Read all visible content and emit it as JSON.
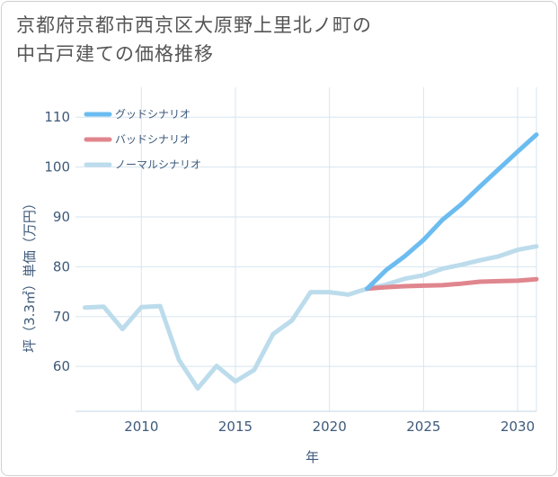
{
  "title_line1": "京都府京都市西京区大原野上里北ノ町の",
  "title_line2": "中古戸建ての価格推移",
  "chart_data": {
    "type": "line",
    "title": "京都府京都市西京区大原野上里北ノ町の中古戸建ての価格推移",
    "xlabel": "年",
    "ylabel": "坪（3.3㎡）単価（万円）",
    "xlim": [
      2006.5,
      2031
    ],
    "ylim": [
      51,
      116
    ],
    "xticks": [
      2010,
      2015,
      2020,
      2025,
      2030
    ],
    "yticks": [
      60,
      70,
      80,
      90,
      100,
      110
    ],
    "grid": true,
    "legend_position": "top-left",
    "series": [
      {
        "name": "グッドシナリオ",
        "color": "#6bbcf0",
        "x": [
          2022,
          2023,
          2024,
          2025,
          2026,
          2027,
          2028,
          2029,
          2030,
          2031
        ],
        "y": [
          75.6,
          79.3,
          82.1,
          85.4,
          89.4,
          92.5,
          96.1,
          99.6,
          103.1,
          106.5
        ]
      },
      {
        "name": "バッドシナリオ",
        "color": "#e0868e",
        "x": [
          2022,
          2023,
          2024,
          2025,
          2026,
          2027,
          2028,
          2029,
          2030,
          2031
        ],
        "y": [
          75.6,
          75.9,
          76.1,
          76.2,
          76.3,
          76.6,
          77.0,
          77.1,
          77.2,
          77.5
        ]
      },
      {
        "name": "ノーマルシナリオ",
        "color": "#bcdcec",
        "x": [
          2007,
          2008,
          2009,
          2010,
          2011,
          2012,
          2013,
          2014,
          2015,
          2016,
          2017,
          2018,
          2019,
          2020,
          2021,
          2022,
          2023,
          2024,
          2025,
          2026,
          2027,
          2028,
          2029,
          2030,
          2031
        ],
        "y": [
          71.8,
          72.0,
          67.5,
          71.9,
          72.1,
          61.3,
          55.6,
          60.1,
          57.0,
          59.3,
          66.5,
          69.2,
          74.9,
          74.9,
          74.4,
          75.6,
          76.4,
          77.6,
          78.3,
          79.6,
          80.4,
          81.3,
          82.1,
          83.4,
          84.1
        ]
      }
    ]
  }
}
